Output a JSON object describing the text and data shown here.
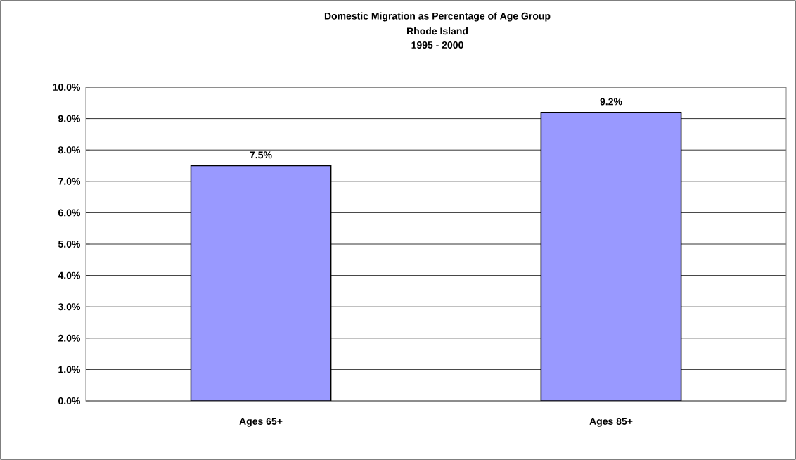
{
  "chart_data": {
    "type": "bar",
    "title": "Domestic Migration as Percentage of Age Group",
    "subtitle": "Rhode Island",
    "annotations": [
      "1995 - 2000"
    ],
    "categories": [
      "Ages 65+",
      "Ages 85+"
    ],
    "values": [
      7.5,
      9.2
    ],
    "value_labels": [
      "7.5%",
      "9.2%"
    ],
    "color": "#9999ff",
    "ylim": [
      0,
      10
    ],
    "yticks": [
      {
        "value": 0,
        "label": "0.0%"
      },
      {
        "value": 1,
        "label": "1.0%"
      },
      {
        "value": 2,
        "label": "2.0%"
      },
      {
        "value": 3,
        "label": "3.0%"
      },
      {
        "value": 4,
        "label": "4.0%"
      },
      {
        "value": 5,
        "label": "5.0%"
      },
      {
        "value": 6,
        "label": "6.0%"
      },
      {
        "value": 7,
        "label": "7.0%"
      },
      {
        "value": 8,
        "label": "8.0%"
      },
      {
        "value": 9,
        "label": "9.0%"
      },
      {
        "value": 10,
        "label": "10.0%"
      }
    ],
    "grid": "y"
  }
}
